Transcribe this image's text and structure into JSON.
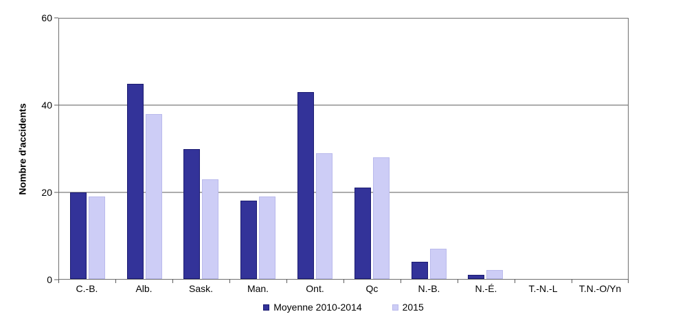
{
  "chart_data": {
    "type": "bar",
    "title": "",
    "xlabel": "",
    "ylabel": "Nombre d'accidents",
    "ylim": [
      0,
      60
    ],
    "yticks": [
      0,
      20,
      40,
      60
    ],
    "grid": true,
    "legend_position": "bottom-center",
    "categories": [
      "C.-B.",
      "Alb.",
      "Sask.",
      "Man.",
      "Ont.",
      "Qc",
      "N.-B.",
      "N.-É.",
      "T.-N.-L",
      "T.N.-O/Yn"
    ],
    "series": [
      {
        "name": "Moyenne 2010-2014",
        "fill_color": "#333399",
        "border_color": "#1a1a70",
        "values": [
          20,
          45,
          30,
          18,
          43,
          21,
          4,
          1,
          0,
          0
        ]
      },
      {
        "name": "2015",
        "fill_color": "#cdcdf6",
        "border_color": "#b9b9ec",
        "values": [
          19,
          38,
          23,
          19,
          29,
          28,
          7,
          2,
          0,
          0
        ]
      }
    ]
  }
}
